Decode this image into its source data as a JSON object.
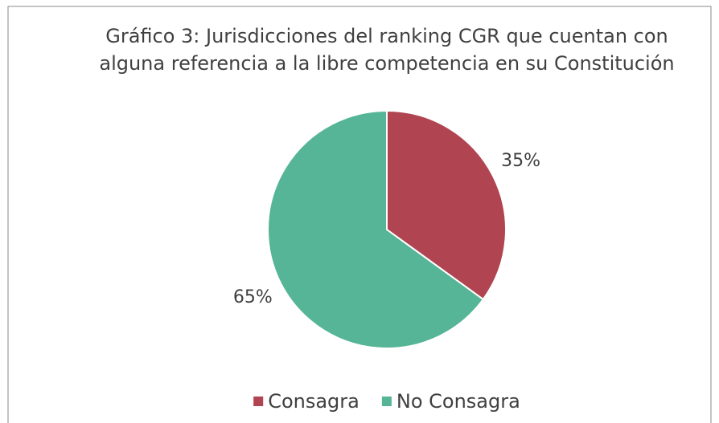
{
  "chart_data": {
    "type": "pie",
    "title": [
      "Gráfico 3: Jurisdicciones del ranking CGR que cuentan con",
      "alguna referencia a la libre competencia en su Constitución"
    ],
    "categories": [
      "Consagra",
      "No Consagra"
    ],
    "values": [
      35,
      65
    ],
    "value_labels": [
      "35%",
      "65%"
    ],
    "colors": [
      "#b04551",
      "#56b596"
    ],
    "legend": "bottom"
  }
}
